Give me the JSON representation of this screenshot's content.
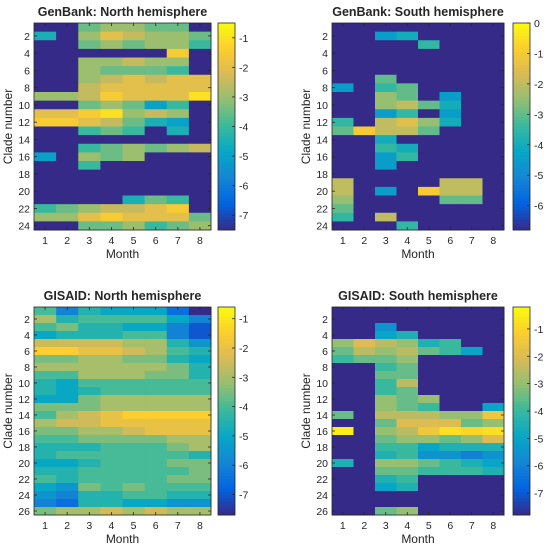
{
  "colormap": {
    "name": "parula",
    "stops": [
      "#352a87",
      "#0363e1",
      "#1485d4",
      "#06a7c6",
      "#38b99e",
      "#92bf73",
      "#d9ba56",
      "#fcce2e",
      "#f9fb0e"
    ]
  },
  "chart_data": [
    {
      "type": "heatmap",
      "title": "GenBank: North hemisphere",
      "xlabel": "Month",
      "ylabel": "Clade number",
      "x": [
        1,
        2,
        3,
        4,
        5,
        6,
        7,
        8
      ],
      "y_ticks": [
        2,
        4,
        6,
        8,
        10,
        12,
        14,
        16,
        18,
        20,
        22,
        24
      ],
      "y_range": [
        1,
        24
      ],
      "color_range": [
        -7.5,
        -0.5
      ],
      "colorbar_ticks": [
        -1,
        -2,
        -3,
        -4,
        -5,
        -6,
        -7
      ],
      "values": [
        [
          -7.5,
          -7.5,
          -3.5,
          -3.0,
          -3.0,
          -3.5,
          -3.5,
          -7.5
        ],
        [
          -4.5,
          -7.5,
          -3.0,
          -2.0,
          -2.5,
          -3.0,
          -3.0,
          -3.5
        ],
        [
          -7.5,
          -7.5,
          -3.5,
          -3.0,
          -3.5,
          -3.0,
          -3.0,
          -4.0
        ],
        [
          -7.5,
          -7.5,
          -7.5,
          -7.5,
          -7.5,
          -7.5,
          -1.5,
          -7.5
        ],
        [
          -7.5,
          -7.5,
          -3.0,
          -3.0,
          -2.5,
          -3.0,
          -3.0,
          -7.5
        ],
        [
          -7.5,
          -7.5,
          -3.0,
          -3.5,
          -3.5,
          -3.5,
          -4.0,
          -7.5
        ],
        [
          -7.5,
          -7.5,
          -3.0,
          -2.5,
          -2.0,
          -2.5,
          -2.0,
          -2.0
        ],
        [
          -7.5,
          -7.5,
          -2.5,
          -2.0,
          -2.0,
          -2.0,
          -2.0,
          -2.0
        ],
        [
          -3.0,
          -3.0,
          -2.5,
          -1.5,
          -2.0,
          -2.0,
          -2.0,
          -1.0
        ],
        [
          -7.5,
          -7.5,
          -3.5,
          -3.0,
          -3.5,
          -5.0,
          -4.0,
          -7.5
        ],
        [
          -2.0,
          -2.0,
          -1.5,
          -1.0,
          -3.0,
          -2.5,
          -3.0,
          -7.5
        ],
        [
          -1.5,
          -1.5,
          -2.0,
          -2.5,
          -3.5,
          -4.5,
          -5.0,
          -7.5
        ],
        [
          -7.5,
          -7.5,
          -4.0,
          -3.5,
          -4.0,
          -7.5,
          -4.5,
          -7.5
        ],
        [
          -7.5,
          -7.5,
          -7.5,
          -7.5,
          -7.5,
          -7.5,
          -7.5,
          -7.5
        ],
        [
          -7.5,
          -7.5,
          -4.0,
          -3.5,
          -3.0,
          -3.5,
          -3.0,
          -2.5
        ],
        [
          -5.0,
          -7.5,
          -3.0,
          -3.5,
          -3.0,
          -7.5,
          -7.5,
          -7.5
        ],
        [
          -7.5,
          -7.5,
          -4.0,
          -7.5,
          -7.5,
          -7.5,
          -7.5,
          -7.5
        ],
        [
          -7.5,
          -7.5,
          -7.5,
          -7.5,
          -7.5,
          -7.5,
          -7.5,
          -7.5
        ],
        [
          -7.5,
          -7.5,
          -7.5,
          -7.5,
          -7.5,
          -7.5,
          -7.5,
          -7.5
        ],
        [
          -7.5,
          -7.5,
          -7.5,
          -7.5,
          -7.5,
          -7.5,
          -7.5,
          -7.5
        ],
        [
          -7.5,
          -7.5,
          -7.5,
          -7.5,
          -4.5,
          -3.5,
          -4.0,
          -7.5
        ],
        [
          -4.0,
          -3.5,
          -3.0,
          -2.5,
          -2.5,
          -2.0,
          -1.5,
          -7.5
        ],
        [
          -3.0,
          -3.0,
          -2.0,
          -1.5,
          -2.0,
          -2.0,
          -2.0,
          -3.5
        ],
        [
          -7.5,
          -7.5,
          -3.5,
          -3.5,
          -3.0,
          -4.0,
          -3.5,
          -3.0
        ]
      ]
    },
    {
      "type": "heatmap",
      "title": "GenBank: South hemisphere",
      "xlabel": "Month",
      "ylabel": "Clade number",
      "x": [
        1,
        2,
        3,
        4,
        5,
        6,
        7,
        8
      ],
      "y_ticks": [
        2,
        4,
        6,
        8,
        10,
        12,
        14,
        16,
        18,
        20,
        22,
        24
      ],
      "y_range": [
        1,
        24
      ],
      "color_range": [
        -6.8,
        0
      ],
      "colorbar_ticks": [
        0,
        -1,
        -2,
        -3,
        -4,
        -5,
        -6
      ],
      "values": [
        [
          -6.8,
          -6.8,
          -6.8,
          -6.8,
          -6.8,
          -6.8,
          -6.8,
          -6.8
        ],
        [
          -6.8,
          -6.8,
          -4.5,
          -4.0,
          -6.8,
          -6.8,
          -6.8,
          -6.8
        ],
        [
          -6.8,
          -6.8,
          -6.8,
          -6.8,
          -3.5,
          -6.8,
          -6.8,
          -6.8
        ],
        [
          -6.8,
          -6.8,
          -6.8,
          -6.8,
          -6.8,
          -6.8,
          -6.8,
          -6.8
        ],
        [
          -6.8,
          -6.8,
          -6.8,
          -6.8,
          -6.8,
          -6.8,
          -6.8,
          -6.8
        ],
        [
          -6.8,
          -6.8,
          -6.8,
          -6.8,
          -6.8,
          -6.8,
          -6.8,
          -6.8
        ],
        [
          -6.8,
          -6.8,
          -3.0,
          -6.8,
          -6.8,
          -6.8,
          -6.8,
          -6.8
        ],
        [
          -4.5,
          -6.8,
          -3.5,
          -3.0,
          -6.8,
          -6.8,
          -6.8,
          -6.8
        ],
        [
          -6.8,
          -6.8,
          -2.5,
          -3.0,
          -6.8,
          -4.5,
          -6.8,
          -6.8
        ],
        [
          -6.8,
          -6.8,
          -2.5,
          -2.0,
          -3.0,
          -4.0,
          -6.8,
          -6.8
        ],
        [
          -6.8,
          -6.8,
          -4.5,
          -3.5,
          -6.8,
          -4.5,
          -6.8,
          -6.8
        ],
        [
          -3.5,
          -6.8,
          -2.0,
          -1.5,
          -2.5,
          -4.0,
          -6.8,
          -6.8
        ],
        [
          -3.0,
          -1.0,
          -2.0,
          -2.0,
          -3.0,
          -6.8,
          -6.8,
          -6.8
        ],
        [
          -6.8,
          -6.8,
          -4.0,
          -6.8,
          -6.8,
          -6.8,
          -6.8,
          -6.8
        ],
        [
          -6.8,
          -6.8,
          -3.5,
          -4.0,
          -6.8,
          -6.8,
          -6.8,
          -6.8
        ],
        [
          -6.8,
          -6.8,
          -4.5,
          -3.5,
          -6.8,
          -6.8,
          -6.8,
          -6.8
        ],
        [
          -6.8,
          -6.8,
          -4.5,
          -6.8,
          -6.8,
          -6.8,
          -6.8,
          -6.8
        ],
        [
          -6.8,
          -6.8,
          -6.8,
          -6.8,
          -6.8,
          -6.8,
          -6.8,
          -6.8
        ],
        [
          -2.0,
          -6.8,
          -6.8,
          -6.8,
          -6.8,
          -2.0,
          -2.0,
          -6.8
        ],
        [
          -2.0,
          -6.8,
          -4.5,
          -6.8,
          -1.0,
          -2.0,
          -2.0,
          -6.8
        ],
        [
          -2.5,
          -6.8,
          -6.8,
          -6.8,
          -6.8,
          -3.0,
          -3.0,
          -6.8
        ],
        [
          -3.0,
          -6.8,
          -6.8,
          -6.8,
          -6.8,
          -6.8,
          -6.8,
          -6.8
        ],
        [
          -3.5,
          -6.8,
          -2.0,
          -6.8,
          -6.8,
          -6.8,
          -6.8,
          -6.8
        ],
        [
          -6.8,
          -6.8,
          -6.8,
          -3.5,
          -6.8,
          -6.8,
          -6.8,
          -6.8
        ]
      ]
    },
    {
      "type": "heatmap",
      "title": "GISAID: North hemisphere",
      "xlabel": "Month",
      "ylabel": "Clade number",
      "x": [
        1,
        2,
        3,
        4,
        5,
        6,
        7,
        8
      ],
      "y_ticks": [
        2,
        4,
        6,
        8,
        10,
        12,
        14,
        16,
        18,
        20,
        22,
        24,
        26
      ],
      "y_range": [
        1,
        26
      ],
      "color_range": [
        -7.7,
        -0.6
      ],
      "colorbar_ticks": [
        -1,
        -2,
        -3,
        -4,
        -5,
        -6,
        -7
      ],
      "values": [
        [
          -4.0,
          -6.0,
          -4.5,
          -5.0,
          -5.0,
          -5.0,
          -6.5,
          -7.7
        ],
        [
          -3.0,
          -4.5,
          -4.0,
          -4.0,
          -4.0,
          -4.0,
          -5.0,
          -6.0
        ],
        [
          -4.0,
          -3.5,
          -4.5,
          -4.5,
          -5.0,
          -5.0,
          -6.0,
          -7.0
        ],
        [
          -5.0,
          -4.5,
          -4.5,
          -4.5,
          -4.0,
          -4.0,
          -6.0,
          -7.0
        ],
        [
          -2.5,
          -2.5,
          -2.5,
          -2.5,
          -3.0,
          -3.0,
          -4.5,
          -5.5
        ],
        [
          -1.5,
          -1.5,
          -2.0,
          -2.0,
          -2.5,
          -3.0,
          -4.0,
          -4.5
        ],
        [
          -3.5,
          -3.5,
          -3.0,
          -3.0,
          -3.5,
          -3.5,
          -4.5,
          -5.0
        ],
        [
          -3.0,
          -3.0,
          -3.0,
          -3.0,
          -3.0,
          -3.0,
          -3.5,
          -4.5
        ],
        [
          -4.0,
          -4.0,
          -3.0,
          -3.0,
          -3.0,
          -3.5,
          -3.5,
          -4.5
        ],
        [
          -4.5,
          -5.0,
          -4.0,
          -4.0,
          -4.0,
          -4.0,
          -4.0,
          -4.0
        ],
        [
          -4.5,
          -5.0,
          -4.5,
          -4.0,
          -4.0,
          -4.0,
          -4.0,
          -4.0
        ],
        [
          -5.0,
          -5.0,
          -3.5,
          -3.0,
          -3.0,
          -3.0,
          -3.0,
          -3.0
        ],
        [
          -3.5,
          -3.5,
          -3.5,
          -3.0,
          -3.0,
          -3.0,
          -3.0,
          -3.0
        ],
        [
          -4.0,
          -3.0,
          -2.5,
          -2.0,
          -1.5,
          -1.5,
          -1.5,
          -1.5
        ],
        [
          -3.0,
          -2.5,
          -2.5,
          -2.0,
          -2.0,
          -2.0,
          -2.0,
          -2.0
        ],
        [
          -3.5,
          -3.5,
          -3.0,
          -3.0,
          -2.5,
          -2.0,
          -2.0,
          -2.0
        ],
        [
          -4.0,
          -4.0,
          -3.5,
          -3.5,
          -3.5,
          -3.5,
          -3.0,
          -3.0
        ],
        [
          -4.5,
          -4.5,
          -4.5,
          -4.0,
          -4.0,
          -4.0,
          -3.5,
          -3.0
        ],
        [
          -4.5,
          -4.0,
          -4.0,
          -4.0,
          -4.0,
          -4.0,
          -4.0,
          -4.5
        ],
        [
          -5.0,
          -5.0,
          -4.5,
          -4.0,
          -4.0,
          -4.0,
          -3.5,
          -3.5
        ],
        [
          -4.5,
          -4.5,
          -4.0,
          -4.0,
          -4.0,
          -4.0,
          -4.0,
          -3.5
        ],
        [
          -4.0,
          -4.5,
          -4.0,
          -4.0,
          -4.0,
          -4.0,
          -3.5,
          -3.5
        ],
        [
          -5.0,
          -5.5,
          -3.5,
          -4.0,
          -3.5,
          -4.0,
          -4.0,
          -4.0
        ],
        [
          -5.5,
          -6.0,
          -4.5,
          -4.5,
          -4.0,
          -4.0,
          -4.5,
          -4.5
        ],
        [
          -6.0,
          -6.5,
          -4.5,
          -4.5,
          -5.0,
          -5.0,
          -5.5,
          -5.5
        ],
        [
          -3.5,
          -3.0,
          -3.0,
          -2.5,
          -3.0,
          -2.5,
          -3.0,
          -3.0
        ]
      ]
    },
    {
      "type": "heatmap",
      "title": "GISAID: South hemisphere",
      "xlabel": "Month",
      "ylabel": "Clade number",
      "x": [
        1,
        2,
        3,
        4,
        5,
        6,
        7,
        8
      ],
      "y_ticks": [
        2,
        4,
        6,
        8,
        10,
        12,
        14,
        16,
        18,
        20,
        22,
        24,
        26
      ],
      "y_range": [
        1,
        26
      ],
      "color_range": [
        -7.8,
        -0.2
      ],
      "colorbar_ticks": [
        -1,
        -2,
        -3,
        -4,
        -5,
        -6,
        -7
      ],
      "values": [
        [
          -7.8,
          -7.8,
          -7.8,
          -7.8,
          -7.8,
          -7.8,
          -7.8,
          -7.8
        ],
        [
          -7.8,
          -7.8,
          -7.8,
          -7.8,
          -7.8,
          -7.8,
          -7.8,
          -7.8
        ],
        [
          -7.8,
          -7.8,
          -5.5,
          -7.8,
          -7.8,
          -7.8,
          -7.8,
          -7.8
        ],
        [
          -7.8,
          -7.8,
          -5.0,
          -4.5,
          -7.8,
          -7.8,
          -7.8,
          -7.8
        ],
        [
          -3.0,
          -2.0,
          -2.5,
          -3.0,
          -4.5,
          -4.0,
          -7.8,
          -7.8
        ],
        [
          -3.5,
          -2.5,
          -3.0,
          -2.5,
          -3.5,
          -4.0,
          -5.0,
          -7.8
        ],
        [
          -4.0,
          -3.5,
          -3.5,
          -3.0,
          -7.8,
          -7.8,
          -7.8,
          -7.8
        ],
        [
          -7.8,
          -7.8,
          -4.0,
          -3.5,
          -7.8,
          -7.8,
          -7.8,
          -7.8
        ],
        [
          -7.8,
          -7.8,
          -3.5,
          -3.5,
          -7.8,
          -7.8,
          -7.8,
          -7.8
        ],
        [
          -7.8,
          -7.8,
          -4.0,
          -2.5,
          -7.8,
          -7.8,
          -7.8,
          -7.8
        ],
        [
          -7.8,
          -7.8,
          -4.0,
          -3.5,
          -7.8,
          -7.8,
          -7.8,
          -7.8
        ],
        [
          -7.8,
          -7.8,
          -3.0,
          -3.5,
          -3.0,
          -7.8,
          -7.8,
          -7.8
        ],
        [
          -7.8,
          -7.8,
          -3.0,
          -3.5,
          -4.0,
          -7.8,
          -7.8,
          -5.0
        ],
        [
          -3.5,
          -7.8,
          -2.5,
          -2.5,
          -2.5,
          -3.0,
          -3.0,
          -1.5
        ],
        [
          -7.8,
          -7.8,
          -3.5,
          -2.0,
          -2.0,
          -2.0,
          -3.5,
          -3.0
        ],
        [
          -0.5,
          -7.8,
          -3.0,
          -2.5,
          -1.5,
          -0.8,
          -1.0,
          -0.8
        ],
        [
          -7.8,
          -7.8,
          -3.5,
          -3.0,
          -3.0,
          -3.5,
          -3.0,
          -2.0
        ],
        [
          -7.8,
          -7.8,
          -4.0,
          -4.0,
          -5.0,
          -4.5,
          -4.5,
          -4.5
        ],
        [
          -7.8,
          -7.8,
          -4.5,
          -4.0,
          -5.5,
          -5.5,
          -6.0,
          -5.5
        ],
        [
          -4.5,
          -7.8,
          -3.0,
          -3.0,
          -3.5,
          -4.0,
          -4.5,
          -5.0
        ],
        [
          -7.8,
          -7.8,
          -3.5,
          -3.5,
          -4.0,
          -4.0,
          -4.0,
          -4.5
        ],
        [
          -7.8,
          -7.8,
          -4.5,
          -4.0,
          -7.8,
          -7.8,
          -7.8,
          -7.8
        ],
        [
          -7.8,
          -7.8,
          -5.0,
          -4.5,
          -7.8,
          -7.8,
          -7.8,
          -7.8
        ],
        [
          -7.8,
          -7.8,
          -7.8,
          -7.8,
          -7.8,
          -7.8,
          -7.8,
          -7.8
        ],
        [
          -7.8,
          -7.8,
          -7.8,
          -7.8,
          -7.8,
          -7.8,
          -7.8,
          -7.8
        ],
        [
          -7.8,
          -7.8,
          -3.5,
          -3.0,
          -7.8,
          -7.8,
          -7.8,
          -7.8
        ]
      ]
    }
  ]
}
